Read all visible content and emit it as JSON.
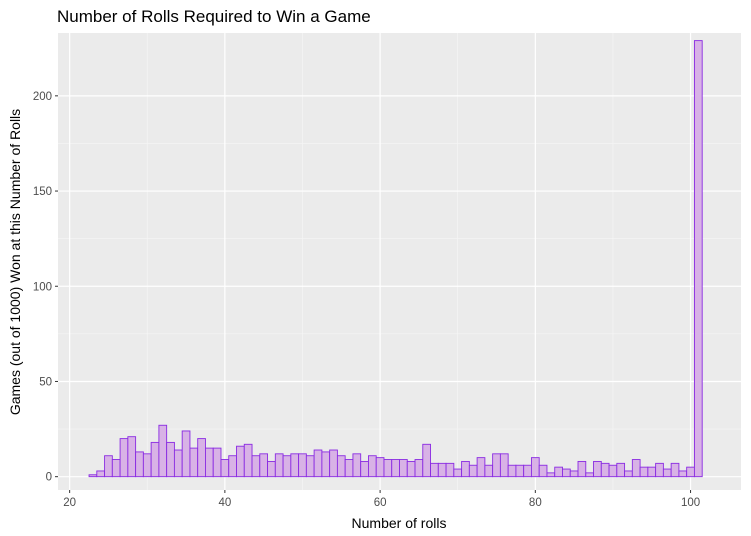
{
  "chart_data": {
    "type": "bar",
    "title": "Number of Rolls Required to Win a Game",
    "xlabel": "Number of rolls",
    "ylabel": "Games (out of 1000) Won at this Number of Rolls",
    "xlim": [
      18.5,
      106.5
    ],
    "ylim": [
      -7,
      233
    ],
    "x_ticks": [
      20,
      40,
      60,
      80,
      100
    ],
    "y_ticks": [
      0,
      50,
      100,
      150,
      200
    ],
    "x_tick_labels": [
      "20",
      "40",
      "60",
      "80",
      "100"
    ],
    "y_tick_labels": [
      "0",
      "50",
      "100",
      "150",
      "200"
    ],
    "grid": true,
    "legend": "none",
    "categories": [
      23,
      24,
      25,
      26,
      27,
      28,
      29,
      30,
      31,
      32,
      33,
      34,
      35,
      36,
      37,
      38,
      39,
      40,
      41,
      42,
      43,
      44,
      45,
      46,
      47,
      48,
      49,
      50,
      51,
      52,
      53,
      54,
      55,
      56,
      57,
      58,
      59,
      60,
      61,
      62,
      63,
      64,
      65,
      66,
      67,
      68,
      69,
      70,
      71,
      72,
      73,
      74,
      75,
      76,
      77,
      78,
      79,
      80,
      81,
      82,
      83,
      84,
      85,
      86,
      87,
      88,
      89,
      90,
      91,
      92,
      93,
      94,
      95,
      96,
      97,
      98,
      99,
      100,
      101
    ],
    "values": [
      1,
      3,
      11,
      9,
      20,
      21,
      13,
      12,
      18,
      27,
      18,
      14,
      24,
      15,
      20,
      15,
      15,
      9,
      11,
      16,
      17,
      11,
      12,
      8,
      12,
      11,
      12,
      12,
      11,
      14,
      13,
      14,
      11,
      9,
      12,
      8,
      11,
      10,
      9,
      9,
      9,
      8,
      9,
      17,
      7,
      7,
      7,
      4,
      8,
      6,
      10,
      6,
      12,
      12,
      6,
      6,
      6,
      10,
      6,
      2,
      5,
      4,
      3,
      8,
      2,
      8,
      7,
      6,
      7,
      3,
      9,
      5,
      5,
      7,
      4,
      7,
      3,
      5,
      229
    ],
    "colors": {
      "fill": "#d8b2e6",
      "stroke": "#8a2be2",
      "panel": "#ebebeb",
      "grid_major": "#ffffff",
      "grid_minor": "#f6f6f6"
    }
  }
}
